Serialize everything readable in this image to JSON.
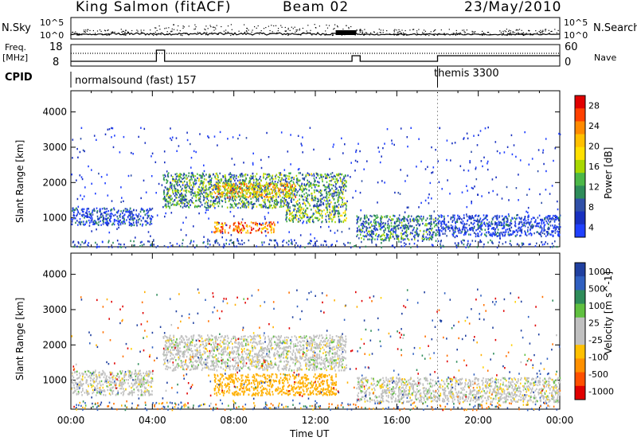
{
  "header": {
    "site": "King Salmon (fitACF)",
    "beam": "Beam 02",
    "date": "23/May/2010"
  },
  "strip_panels": {
    "nsky_label": "N.Sky",
    "nsearch_label": "N.Search",
    "power_ticks": [
      "10^5",
      "10^0"
    ],
    "freq_label": "Freq.",
    "freq_unit": "[MHz]",
    "freq_ticks": [
      "18",
      "8"
    ],
    "nave_label": "Nave",
    "nave_ticks": [
      "60",
      "0"
    ],
    "cpid_label": "CPID",
    "cpid_segments": [
      {
        "name": "normalsound (fast) 157",
        "start_hour": 0
      },
      {
        "name": "themis 3300",
        "start_hour": 18
      }
    ]
  },
  "axes": {
    "xlabel": "Time UT",
    "x_ticks": [
      "00:00",
      "04:00",
      "08:00",
      "12:00",
      "16:00",
      "20:00",
      "00:00"
    ],
    "ylabel": "Slant Range [km]",
    "y_ticks": [
      "1000",
      "2000",
      "3000",
      "4000"
    ]
  },
  "colorbars": {
    "power": {
      "label": "Power [dB]",
      "ticks": [
        "28",
        "24",
        "20",
        "16",
        "12",
        "8",
        "4"
      ],
      "colors": [
        "#e00000",
        "#ff4000",
        "#ff8a00",
        "#ffc000",
        "#ffe000",
        "#a8d800",
        "#4cb848",
        "#2e8c5a",
        "#3050a8",
        "#1830c0",
        "#2040ff"
      ]
    },
    "velocity": {
      "label": "Velocity [m s^-1]",
      "ticks": [
        "1000",
        "500",
        "100",
        "25",
        "-25",
        "-100",
        "-500",
        "-1000"
      ],
      "colors": [
        "#2040a0",
        "#3060c0",
        "#2e8c5a",
        "#60c040",
        "#c0c0c0",
        "#c0c0c0",
        "#ffc000",
        "#ff9000",
        "#ff5000",
        "#e00000"
      ]
    }
  },
  "chart_data": [
    {
      "type": "heatmap",
      "title": "Power",
      "x_range_hours": [
        0,
        24
      ],
      "ylim": [
        180,
        4600
      ],
      "xlabel": "Time UT",
      "ylabel": "Slant Range [km]",
      "features": [
        {
          "hours": [
            0,
            4
          ],
          "range_km": [
            800,
            1300
          ],
          "value_db": 6
        },
        {
          "hours": [
            4.5,
            13.5
          ],
          "range_km": [
            1300,
            2300
          ],
          "value_db": 12
        },
        {
          "hours": [
            7,
            11
          ],
          "range_km": [
            1600,
            2000
          ],
          "value_db": 20
        },
        {
          "hours": [
            7,
            10
          ],
          "range_km": [
            600,
            900
          ],
          "value_db": 24
        },
        {
          "hours": [
            10.5,
            13.5
          ],
          "range_km": [
            900,
            1300
          ],
          "value_db": 14
        },
        {
          "hours": [
            14,
            18
          ],
          "range_km": [
            400,
            1100
          ],
          "value_db": 10
        },
        {
          "hours": [
            18,
            24
          ],
          "range_km": [
            500,
            1100
          ],
          "value_db": 6
        }
      ]
    },
    {
      "type": "heatmap",
      "title": "Velocity",
      "x_range_hours": [
        0,
        24
      ],
      "ylim": [
        180,
        4600
      ],
      "xlabel": "Time UT",
      "ylabel": "Slant Range [km]",
      "features": [
        {
          "hours": [
            0,
            4
          ],
          "range_km": [
            600,
            1300
          ],
          "value_ms": 0
        },
        {
          "hours": [
            4.5,
            13.5
          ],
          "range_km": [
            1300,
            2300
          ],
          "value_ms": 0
        },
        {
          "hours": [
            7,
            13
          ],
          "range_km": [
            600,
            1200
          ],
          "value_ms": -150
        },
        {
          "hours": [
            14,
            24
          ],
          "range_km": [
            400,
            1100
          ],
          "value_ms": 0
        }
      ]
    }
  ]
}
